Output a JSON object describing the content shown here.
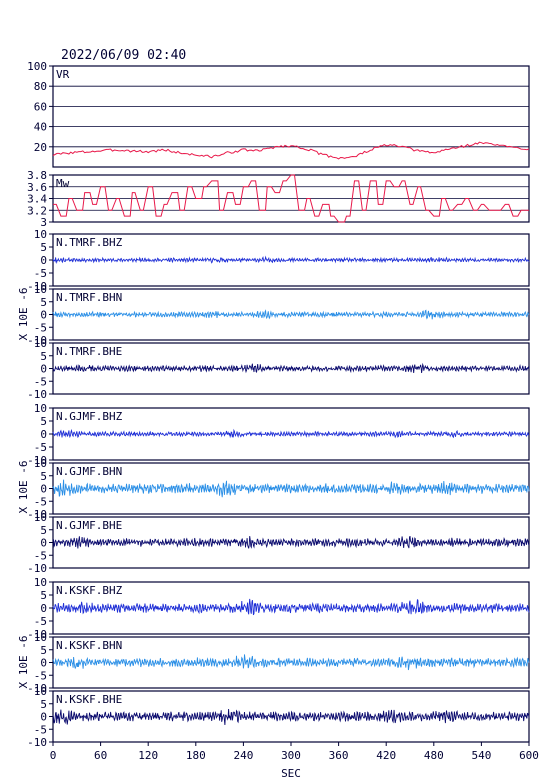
{
  "header": {
    "datetime": "2022/06/09 02:40"
  },
  "x_axis": {
    "label": "SEC",
    "ticks": [
      0,
      60,
      120,
      180,
      240,
      300,
      360,
      420,
      480,
      540,
      600
    ],
    "range": [
      0,
      600
    ]
  },
  "y_unit_label": "X 10E -6",
  "colors": {
    "axes": "#000033",
    "vr_line": "#e8194a",
    "mw_line": "#e8194a",
    "bhz": "#1f2fd6",
    "bhn": "#2b8fe6",
    "bhe": "#0b0b6e",
    "grid": "#000033"
  },
  "chart_data": [
    {
      "type": "line",
      "label": "VR",
      "ylim": [
        0,
        100
      ],
      "yticks": [
        20,
        40,
        60,
        80,
        100
      ],
      "grid": true,
      "x": [
        0,
        20,
        40,
        60,
        80,
        100,
        120,
        140,
        160,
        180,
        200,
        220,
        240,
        260,
        280,
        300,
        320,
        340,
        360,
        380,
        400,
        420,
        440,
        460,
        480,
        500,
        520,
        540,
        560,
        580,
        600
      ],
      "values": [
        12,
        14,
        15,
        16,
        17,
        16,
        15,
        17,
        14,
        12,
        10,
        14,
        17,
        16,
        20,
        21,
        18,
        12,
        9,
        10,
        17,
        22,
        20,
        16,
        14,
        18,
        21,
        24,
        22,
        19,
        18
      ]
    },
    {
      "type": "line",
      "label": "Mw",
      "ylim": [
        3.0,
        3.8
      ],
      "yticks": [
        3.0,
        3.2,
        3.4,
        3.6,
        3.8
      ],
      "grid": true,
      "x": [
        0,
        10,
        20,
        30,
        40,
        50,
        60,
        70,
        80,
        90,
        100,
        110,
        120,
        130,
        140,
        150,
        160,
        170,
        180,
        190,
        200,
        210,
        220,
        230,
        240,
        250,
        260,
        270,
        280,
        290,
        300,
        310,
        320,
        330,
        340,
        350,
        360,
        370,
        380,
        390,
        400,
        410,
        420,
        430,
        440,
        450,
        460,
        470,
        480,
        490,
        500,
        510,
        520,
        530,
        540,
        550,
        560,
        570,
        580,
        590
      ],
      "values": [
        3.3,
        3.1,
        3.4,
        3.2,
        3.5,
        3.3,
        3.6,
        3.2,
        3.4,
        3.1,
        3.5,
        3.2,
        3.6,
        3.1,
        3.3,
        3.5,
        3.2,
        3.6,
        3.4,
        3.6,
        3.7,
        3.2,
        3.5,
        3.3,
        3.6,
        3.7,
        3.2,
        3.6,
        3.5,
        3.7,
        3.8,
        3.2,
        3.4,
        3.1,
        3.3,
        3.1,
        3.0,
        3.1,
        3.7,
        3.2,
        3.7,
        3.3,
        3.7,
        3.6,
        3.7,
        3.3,
        3.6,
        3.2,
        3.1,
        3.4,
        3.2,
        3.3,
        3.4,
        3.2,
        3.3,
        3.2,
        3.2,
        3.3,
        3.1,
        3.2
      ]
    },
    {
      "type": "line",
      "label": "N.TMRF.BHZ",
      "ylim": [
        -10,
        10
      ],
      "yticks": [
        10,
        5,
        0,
        -5,
        -10
      ],
      "color_key": "bhz",
      "amplitude": 0.6,
      "seed": 11
    },
    {
      "type": "line",
      "label": "N.TMRF.BHN",
      "ylim": [
        -10,
        10
      ],
      "yticks": [
        10,
        5,
        0,
        -5,
        -10
      ],
      "color_key": "bhn",
      "amplitude": 0.8,
      "seed": 23
    },
    {
      "type": "line",
      "label": "N.TMRF.BHE",
      "ylim": [
        -10,
        10
      ],
      "yticks": [
        10,
        5,
        0,
        -5,
        -10
      ],
      "color_key": "bhe",
      "amplitude": 0.9,
      "seed": 37
    },
    {
      "type": "line",
      "label": "N.GJMF.BHZ",
      "ylim": [
        -10,
        10
      ],
      "yticks": [
        10,
        5,
        0,
        -5,
        -10
      ],
      "color_key": "bhz",
      "amplitude": 0.7,
      "seed": 41
    },
    {
      "type": "line",
      "label": "N.GJMF.BHN",
      "ylim": [
        -10,
        10
      ],
      "yticks": [
        10,
        5,
        0,
        -5,
        -10
      ],
      "color_key": "bhn",
      "amplitude": 1.6,
      "seed": 53
    },
    {
      "type": "line",
      "label": "N.GJMF.BHE",
      "ylim": [
        -10,
        10
      ],
      "yticks": [
        10,
        5,
        0,
        -5,
        -10
      ],
      "color_key": "bhe",
      "amplitude": 1.3,
      "seed": 61
    },
    {
      "type": "line",
      "label": "N.KSKF.BHZ",
      "ylim": [
        -10,
        10
      ],
      "yticks": [
        10,
        5,
        0,
        -5,
        -10
      ],
      "color_key": "bhz",
      "amplitude": 1.5,
      "seed": 71
    },
    {
      "type": "line",
      "label": "N.KSKF.BHN",
      "ylim": [
        -10,
        10
      ],
      "yticks": [
        10,
        5,
        0,
        -5,
        -10
      ],
      "color_key": "bhn",
      "amplitude": 1.4,
      "seed": 83
    },
    {
      "type": "line",
      "label": "N.KSKF.BHE",
      "ylim": [
        -10,
        10
      ],
      "yticks": [
        10,
        5,
        0,
        -5,
        -10
      ],
      "color_key": "bhe",
      "amplitude": 1.5,
      "seed": 97
    }
  ]
}
